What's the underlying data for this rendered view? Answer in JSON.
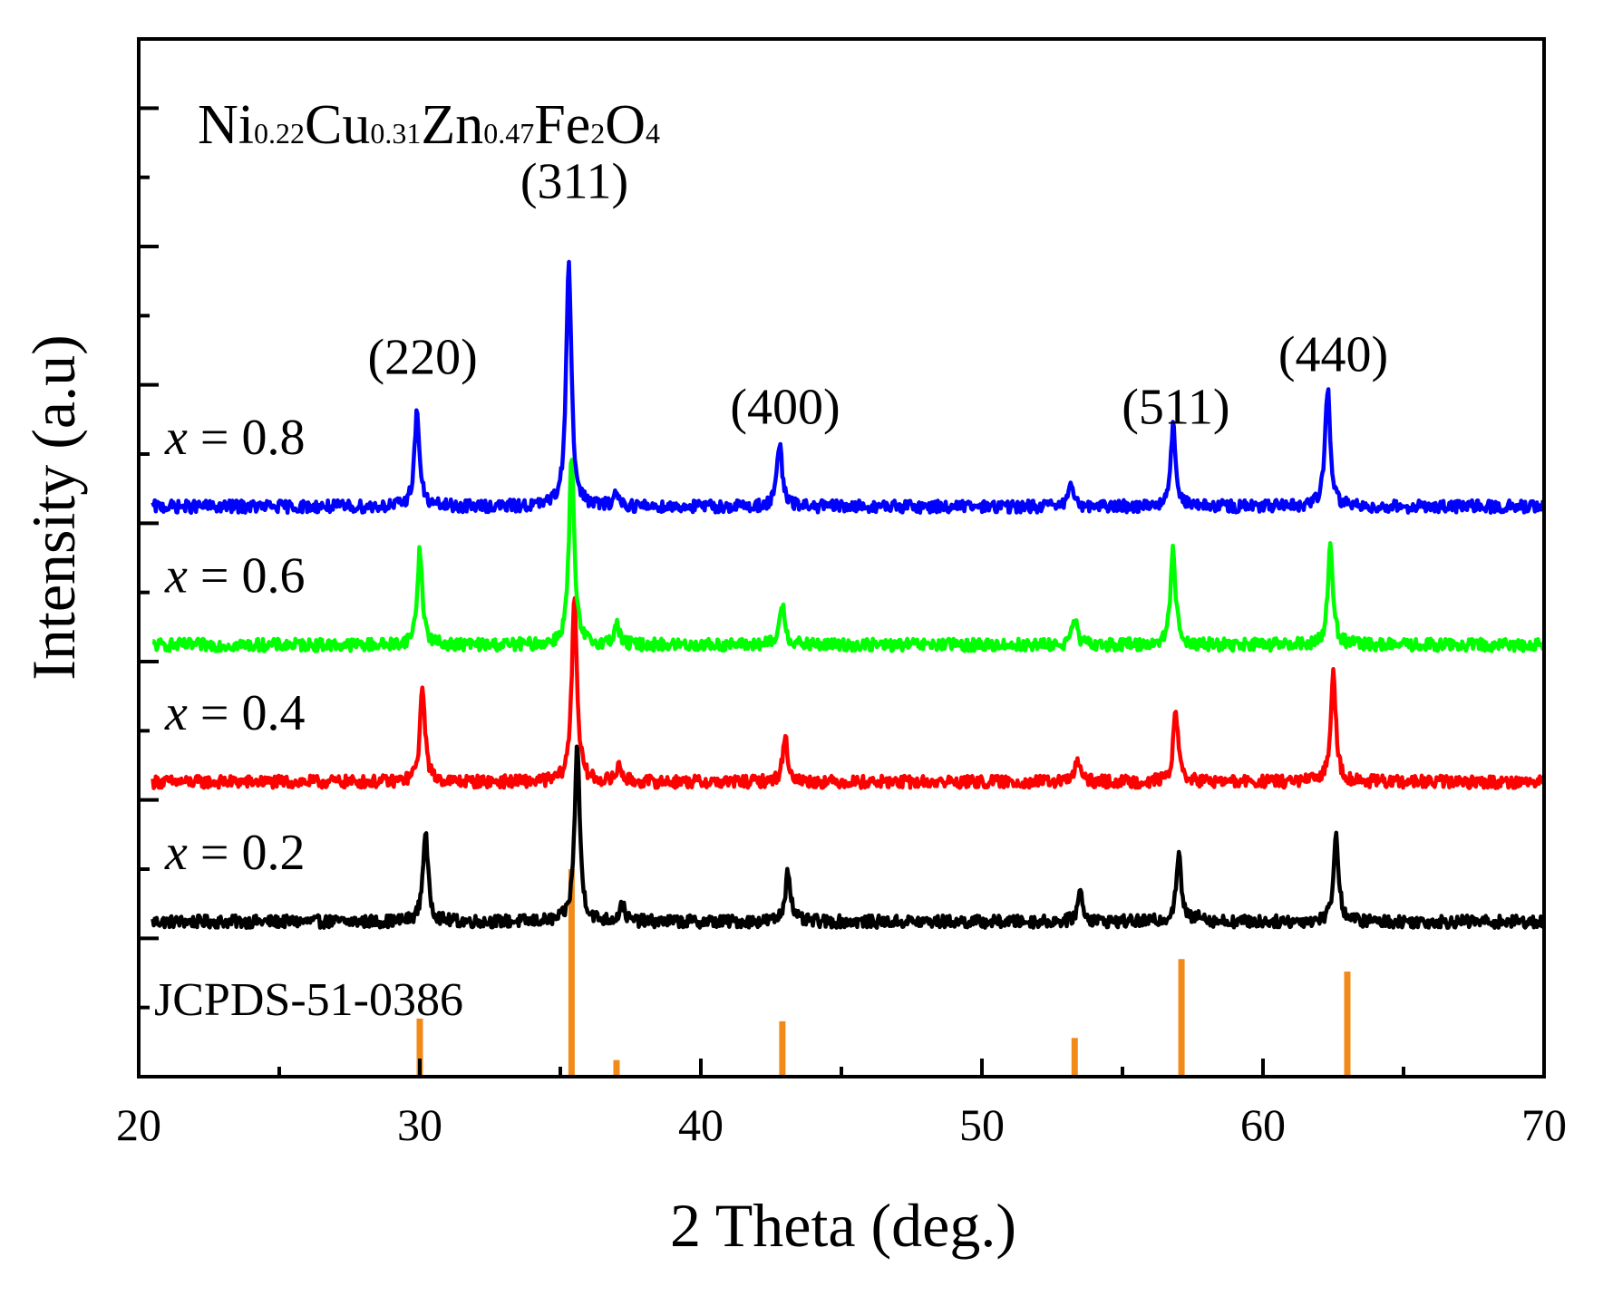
{
  "chart_data": {
    "type": "line",
    "title": "",
    "xlabel": "2 Theta (deg.)",
    "ylabel": "Intensity (a.u)",
    "xlim": [
      20,
      70
    ],
    "ylim": [
      0,
      7.5
    ],
    "x_ticks": [
      "20",
      "30",
      "40",
      "50",
      "60",
      "70"
    ],
    "x_tick_values": [
      20,
      30,
      40,
      50,
      60,
      70
    ],
    "grid": false,
    "compound": {
      "parts": [
        {
          "base": "Ni",
          "sub": "0.22"
        },
        {
          "base": "Cu",
          "sub": "0.31"
        },
        {
          "base": "Zn",
          "sub": "0.47"
        },
        {
          "base": "Fe",
          "sub": "2"
        },
        {
          "base": "O",
          "sub": "4"
        }
      ]
    },
    "peak_labels": [
      {
        "text": "(220)",
        "x": 30.1,
        "y": 5.08
      },
      {
        "text": "(311)",
        "x": 35.5,
        "y": 6.35
      },
      {
        "text": "(400)",
        "x": 43.0,
        "y": 4.72
      },
      {
        "text": "(511)",
        "x": 56.9,
        "y": 4.72
      },
      {
        "text": "(440)",
        "x": 62.5,
        "y": 5.1
      }
    ],
    "series": [
      {
        "name": "x = 0.2",
        "var": "x",
        "eq": "= 0.2",
        "color": "#000000",
        "baseline": 1.12,
        "peaks": [
          [
            30.2,
            0.65
          ],
          [
            35.6,
            1.28
          ],
          [
            37.2,
            0.12
          ],
          [
            43.1,
            0.38
          ],
          [
            53.5,
            0.22
          ],
          [
            57.0,
            0.48
          ],
          [
            57.8,
            0.06
          ],
          [
            62.6,
            0.62
          ]
        ]
      },
      {
        "name": "x = 0.4",
        "var": "x",
        "eq": "= 0.4",
        "color": "#ff0000",
        "baseline": 2.13,
        "peaks": [
          [
            30.1,
            0.68
          ],
          [
            35.5,
            1.35
          ],
          [
            37.1,
            0.12
          ],
          [
            43.0,
            0.32
          ],
          [
            53.4,
            0.16
          ],
          [
            56.9,
            0.5
          ],
          [
            62.5,
            0.8
          ]
        ]
      },
      {
        "name": "x = 0.6",
        "var": "x",
        "eq": "= 0.6",
        "color": "#00ff00",
        "baseline": 3.12,
        "peaks": [
          [
            30.0,
            0.68
          ],
          [
            35.4,
            1.35
          ],
          [
            37.0,
            0.15
          ],
          [
            42.9,
            0.3
          ],
          [
            53.3,
            0.18
          ],
          [
            56.8,
            0.68
          ],
          [
            62.4,
            0.72
          ]
        ]
      },
      {
        "name": "x = 0.8",
        "var": "x",
        "eq": "= 0.8",
        "color": "#0000ff",
        "baseline": 4.12,
        "peaks": [
          [
            29.9,
            0.68
          ],
          [
            35.3,
            1.8
          ],
          [
            37.0,
            0.1
          ],
          [
            42.8,
            0.45
          ],
          [
            53.2,
            0.16
          ],
          [
            56.8,
            0.58
          ],
          [
            62.3,
            0.86
          ]
        ]
      }
    ],
    "reference": {
      "name": "JCPDS-51-0386",
      "color": "#f28a1a",
      "sticks": [
        {
          "x": 30.0,
          "h": 0.42
        },
        {
          "x": 35.4,
          "h": 1.5
        },
        {
          "x": 37.0,
          "h": 0.12
        },
        {
          "x": 42.9,
          "h": 0.4
        },
        {
          "x": 53.3,
          "h": 0.28
        },
        {
          "x": 57.1,
          "h": 0.85
        },
        {
          "x": 63.0,
          "h": 0.76
        }
      ]
    }
  }
}
